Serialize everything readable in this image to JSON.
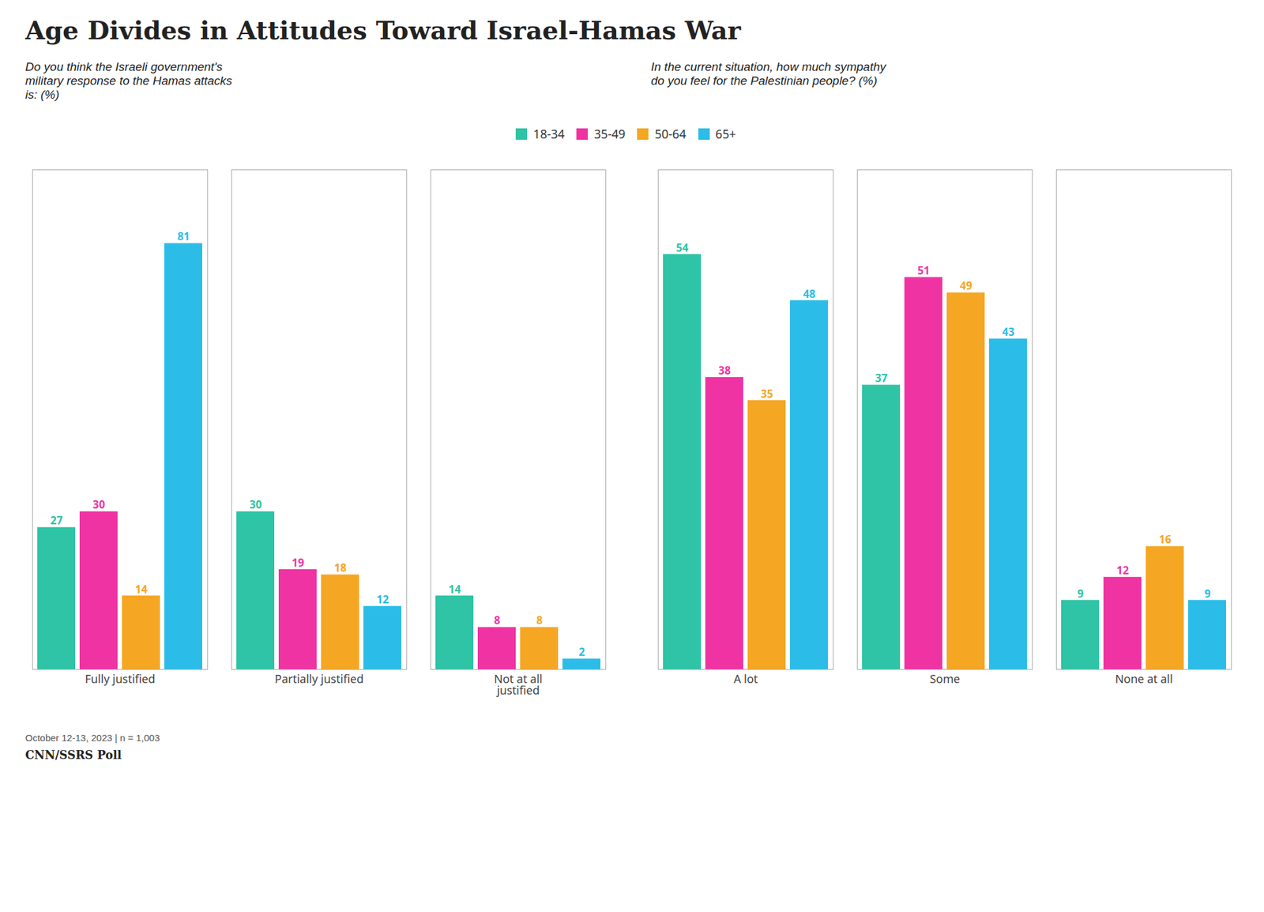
{
  "title": "Age Divides in Attitudes Toward Israel-Hamas War",
  "annotations": [
    "October 12-13, 2023 | n = 1,003",
    "CNN/SSRS Poll"
  ],
  "chart_data": [
    {
      "type": "bar",
      "subtitle": "Do you think the Israeli government's\nmilitary response to the Hamas attacks\nis: (%)",
      "categories": [
        "Fully justified",
        "Partially justified",
        "Not at all\njustified"
      ],
      "series": [
        {
          "name": "18-34",
          "color": "#2ec4a5",
          "values": [
            27,
            30,
            14
          ]
        },
        {
          "name": "35-49",
          "color": "#f033a3",
          "values": [
            30,
            19,
            8
          ]
        },
        {
          "name": "50-64",
          "color": "#f5a623",
          "values": [
            14,
            18,
            8
          ]
        },
        {
          "name": "65+",
          "color": "#2bbde8",
          "values": [
            81,
            12,
            2
          ]
        }
      ],
      "ylim": [
        0,
        95
      ],
      "grid": false,
      "legend": "top",
      "data_labels": true,
      "tick_labels": "x"
    },
    {
      "type": "bar",
      "subtitle": "In the current situation, how much sympathy\ndo you feel for the Palestinian people? (%)",
      "categories": [
        "A lot",
        "Some",
        "None at all"
      ],
      "series": [
        {
          "name": "18-34",
          "color": "#2ec4a5",
          "values": [
            54,
            37,
            9
          ]
        },
        {
          "name": "35-49",
          "color": "#f033a3",
          "values": [
            38,
            51,
            12
          ]
        },
        {
          "name": "50-64",
          "color": "#f5a623",
          "values": [
            35,
            49,
            16
          ]
        },
        {
          "name": "65+",
          "color": "#2bbde8",
          "values": [
            48,
            43,
            9
          ]
        }
      ],
      "ylim": [
        0,
        65
      ],
      "grid": false,
      "data_labels": true,
      "tick_labels": "x"
    }
  ]
}
